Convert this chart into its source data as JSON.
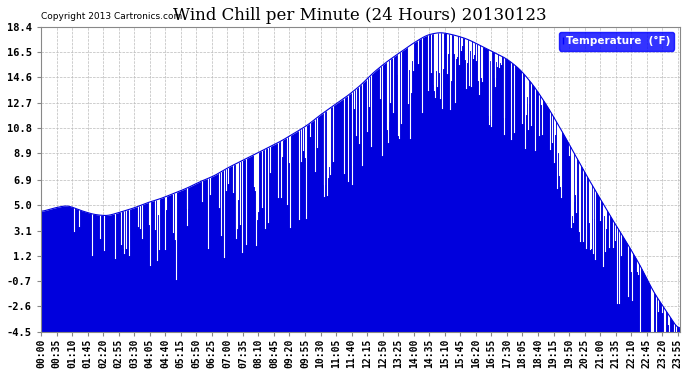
{
  "title": "Wind Chill per Minute (24 Hours) 20130123",
  "copyright": "Copyright 2013 Cartronics.com",
  "legend_label": "Temperature  (°F)",
  "yticks": [
    18.4,
    16.5,
    14.6,
    12.7,
    10.8,
    8.9,
    6.9,
    5.0,
    3.1,
    1.2,
    -0.7,
    -2.6,
    -4.5
  ],
  "ymin": -4.5,
  "ymax": 18.4,
  "line_color": "#0000dd",
  "fill_color": "#0000dd",
  "background_color": "#ffffff",
  "grid_color": "#bbbbbb",
  "title_fontsize": 12,
  "axis_fontsize": 7.5,
  "xtick_interval": 35,
  "total_minutes": 1440,
  "baseline_points": [
    [
      0,
      4.5
    ],
    [
      30,
      4.8
    ],
    [
      60,
      5.0
    ],
    [
      90,
      4.6
    ],
    [
      120,
      4.3
    ],
    [
      150,
      4.2
    ],
    [
      180,
      4.5
    ],
    [
      210,
      4.8
    ],
    [
      240,
      5.2
    ],
    [
      270,
      5.5
    ],
    [
      300,
      5.9
    ],
    [
      330,
      6.3
    ],
    [
      360,
      6.8
    ],
    [
      390,
      7.2
    ],
    [
      420,
      7.8
    ],
    [
      450,
      8.3
    ],
    [
      480,
      8.8
    ],
    [
      510,
      9.3
    ],
    [
      540,
      9.8
    ],
    [
      570,
      10.4
    ],
    [
      600,
      11.0
    ],
    [
      630,
      11.8
    ],
    [
      660,
      12.5
    ],
    [
      690,
      13.2
    ],
    [
      720,
      14.0
    ],
    [
      750,
      15.0
    ],
    [
      780,
      15.8
    ],
    [
      810,
      16.5
    ],
    [
      840,
      17.2
    ],
    [
      870,
      17.8
    ],
    [
      900,
      18.0
    ],
    [
      930,
      17.8
    ],
    [
      960,
      17.5
    ],
    [
      990,
      17.0
    ],
    [
      1020,
      16.5
    ],
    [
      1050,
      16.0
    ],
    [
      1080,
      15.2
    ],
    [
      1110,
      14.0
    ],
    [
      1140,
      12.5
    ],
    [
      1170,
      10.8
    ],
    [
      1200,
      9.0
    ],
    [
      1230,
      7.2
    ],
    [
      1260,
      5.5
    ],
    [
      1290,
      3.8
    ],
    [
      1320,
      2.2
    ],
    [
      1350,
      0.5
    ],
    [
      1380,
      -1.5
    ],
    [
      1410,
      -3.0
    ],
    [
      1439,
      -4.5
    ]
  ],
  "spike_params": {
    "early_depth": 5.5,
    "mid_depth": 7.0,
    "late_depth": 6.0,
    "early_freq": 0.08,
    "mid_freq": 0.15,
    "late_freq": 0.12
  }
}
